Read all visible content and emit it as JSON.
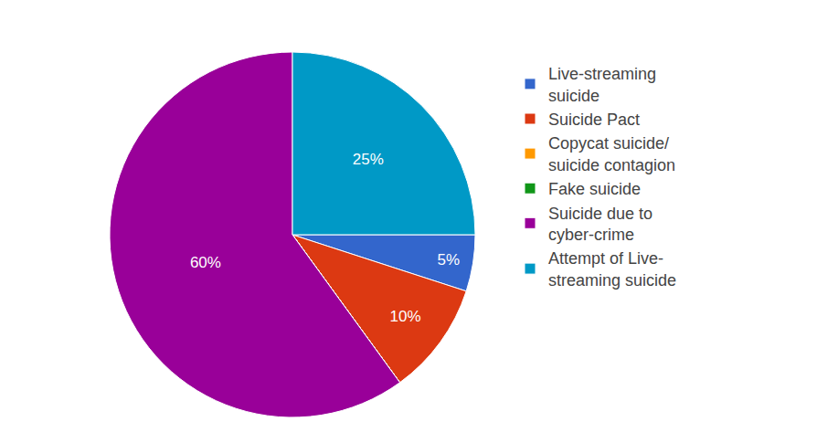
{
  "chart_data": {
    "type": "pie",
    "categories": [
      "Live-streaming\nsuicide",
      "Suicide Pact",
      "Copycat suicide/\nsuicide contagion",
      "Fake suicide",
      "Suicide due to\ncyber-crime",
      "Attempt of Live-\nstreaming suicide"
    ],
    "values": [
      5,
      10,
      0,
      0,
      60,
      25
    ],
    "value_labels": [
      "5%",
      "10%",
      null,
      null,
      "60%",
      "25%"
    ],
    "colors": [
      "#3366cc",
      "#dc3912",
      "#ff9900",
      "#109618",
      "#990099",
      "#0099c6"
    ],
    "data_labels": true,
    "legend": "right"
  }
}
